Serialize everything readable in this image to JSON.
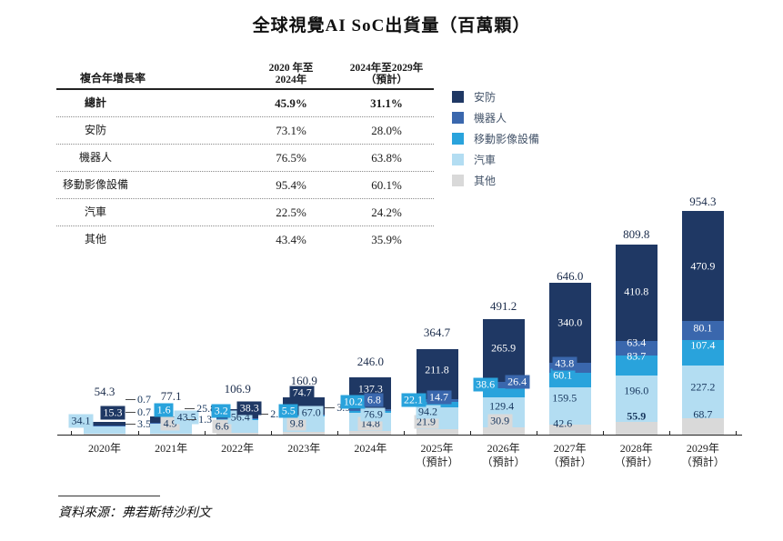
{
  "title": "全球視覺AI SoC出貨量（百萬顆）",
  "source": "資料來源：弗若斯特沙利文",
  "colors": {
    "security": "#1f3864",
    "robot": "#3a67ad",
    "mobile_imaging": "#29a3dc",
    "automotive": "#b3ddf2",
    "others": "#d9d9d9",
    "axis": "#222222",
    "value_text_dark": "#17365d",
    "value_text_light": "#ffffff"
  },
  "table": {
    "header": {
      "col1": "複合年增長率",
      "col2": "2020 年至\n2024年",
      "col3": "2024年至2029年\n（預計）"
    },
    "rows": [
      {
        "label": "總計",
        "cagr_2020_2024": "45.9%",
        "cagr_2024_2029": "31.1%",
        "bold": true
      },
      {
        "label": "安防",
        "cagr_2020_2024": "73.1%",
        "cagr_2024_2029": "28.0%",
        "bold": false
      },
      {
        "label": "機器人",
        "cagr_2020_2024": "76.5%",
        "cagr_2024_2029": "63.8%",
        "bold": false
      },
      {
        "label": "移動影像設備",
        "cagr_2020_2024": "95.4%",
        "cagr_2024_2029": "60.1%",
        "bold": false
      },
      {
        "label": "汽車",
        "cagr_2020_2024": "22.5%",
        "cagr_2024_2029": "24.2%",
        "bold": false
      },
      {
        "label": "其他",
        "cagr_2020_2024": "43.4%",
        "cagr_2024_2029": "35.9%",
        "bold": false
      }
    ]
  },
  "legend": [
    {
      "key": "security",
      "label": "安防",
      "color": "#1f3864"
    },
    {
      "key": "robot",
      "label": "機器人",
      "color": "#3a67ad"
    },
    {
      "key": "mobile_imaging",
      "label": "移動影像設備",
      "color": "#29a3dc"
    },
    {
      "key": "automotive",
      "label": "汽車",
      "color": "#b3ddf2"
    },
    {
      "key": "others",
      "label": "其他",
      "color": "#d9d9d9"
    }
  ],
  "chart_data": {
    "type": "bar",
    "stacked": true,
    "grid": false,
    "title": "全球視覺AI SoC出貨量（百萬顆）",
    "unit": "百萬顆",
    "categories": [
      "2020年",
      "2021年",
      "2022年",
      "2023年",
      "2024年",
      "2025年",
      "2026年",
      "2027年",
      "2028年",
      "2029年"
    ],
    "forecast_suffix": "（預計）",
    "forecast_from_index": 5,
    "ylim": [
      0,
      954.3
    ],
    "legend_position": "middle-left",
    "series": [
      {
        "key": "others",
        "name": "其他",
        "color": "#d9d9d9",
        "values": [
          3.5,
          4.9,
          6.6,
          9.8,
          14.8,
          21.9,
          30.9,
          42.6,
          55.9,
          68.7
        ],
        "labels": [
          "3.5",
          "4.9",
          "6.6",
          "9.8",
          "14.8",
          "21.9",
          "30.9",
          "42.6",
          "55.9",
          "68.7"
        ]
      },
      {
        "key": "automotive",
        "name": "汽車",
        "color": "#b3ddf2",
        "values": [
          34.1,
          43.5,
          56.4,
          67.0,
          76.9,
          94.2,
          129.4,
          159.5,
          196.0,
          227.2
        ],
        "labels": [
          "34.1",
          "43.5",
          "56.4",
          "67.0",
          "76.9",
          "94.2",
          "129.4",
          "159.5",
          "196.0",
          "227.2"
        ]
      },
      {
        "key": "mobile_imaging",
        "name": "移動影像設備",
        "color": "#29a3dc",
        "values": [
          0.7,
          1.6,
          3.2,
          5.5,
          10.2,
          22.1,
          38.6,
          60.1,
          83.7,
          107.4
        ],
        "labels": [
          "0.7",
          "1.6",
          "3.2",
          "5.5",
          "10.2",
          "22.1",
          "38.6",
          "60.1",
          "83.7",
          "107.4"
        ]
      },
      {
        "key": "robot",
        "name": "機器人",
        "color": "#3a67ad",
        "values": [
          0.7,
          1.3,
          2.4,
          3.9,
          6.8,
          14.7,
          26.4,
          43.8,
          63.4,
          80.1
        ],
        "labels": [
          "0.7",
          "1.3",
          "2.4",
          "3.9",
          "6.8",
          "14.7",
          "26.4",
          "43.8",
          "63.4",
          "80.1"
        ]
      },
      {
        "key": "security",
        "name": "安防",
        "color": "#1f3864",
        "values": [
          15.3,
          25.8,
          38.3,
          74.7,
          137.3,
          211.8,
          265.9,
          340.0,
          410.8,
          470.9
        ],
        "labels": [
          "15.3",
          "25.8",
          "38.3",
          "74.7",
          "137.3",
          "211.8",
          "265.9",
          "340.0",
          "410.8",
          "470.9"
        ]
      }
    ],
    "totals": [
      54.3,
      77.1,
      106.9,
      160.9,
      246.0,
      364.7,
      491.2,
      646.0,
      809.8,
      954.3
    ],
    "total_labels": [
      "54.3",
      "77.1",
      "106.9",
      "160.9",
      "246.0",
      "364.7",
      "491.2",
      "646.0",
      "809.8",
      "954.3"
    ]
  }
}
